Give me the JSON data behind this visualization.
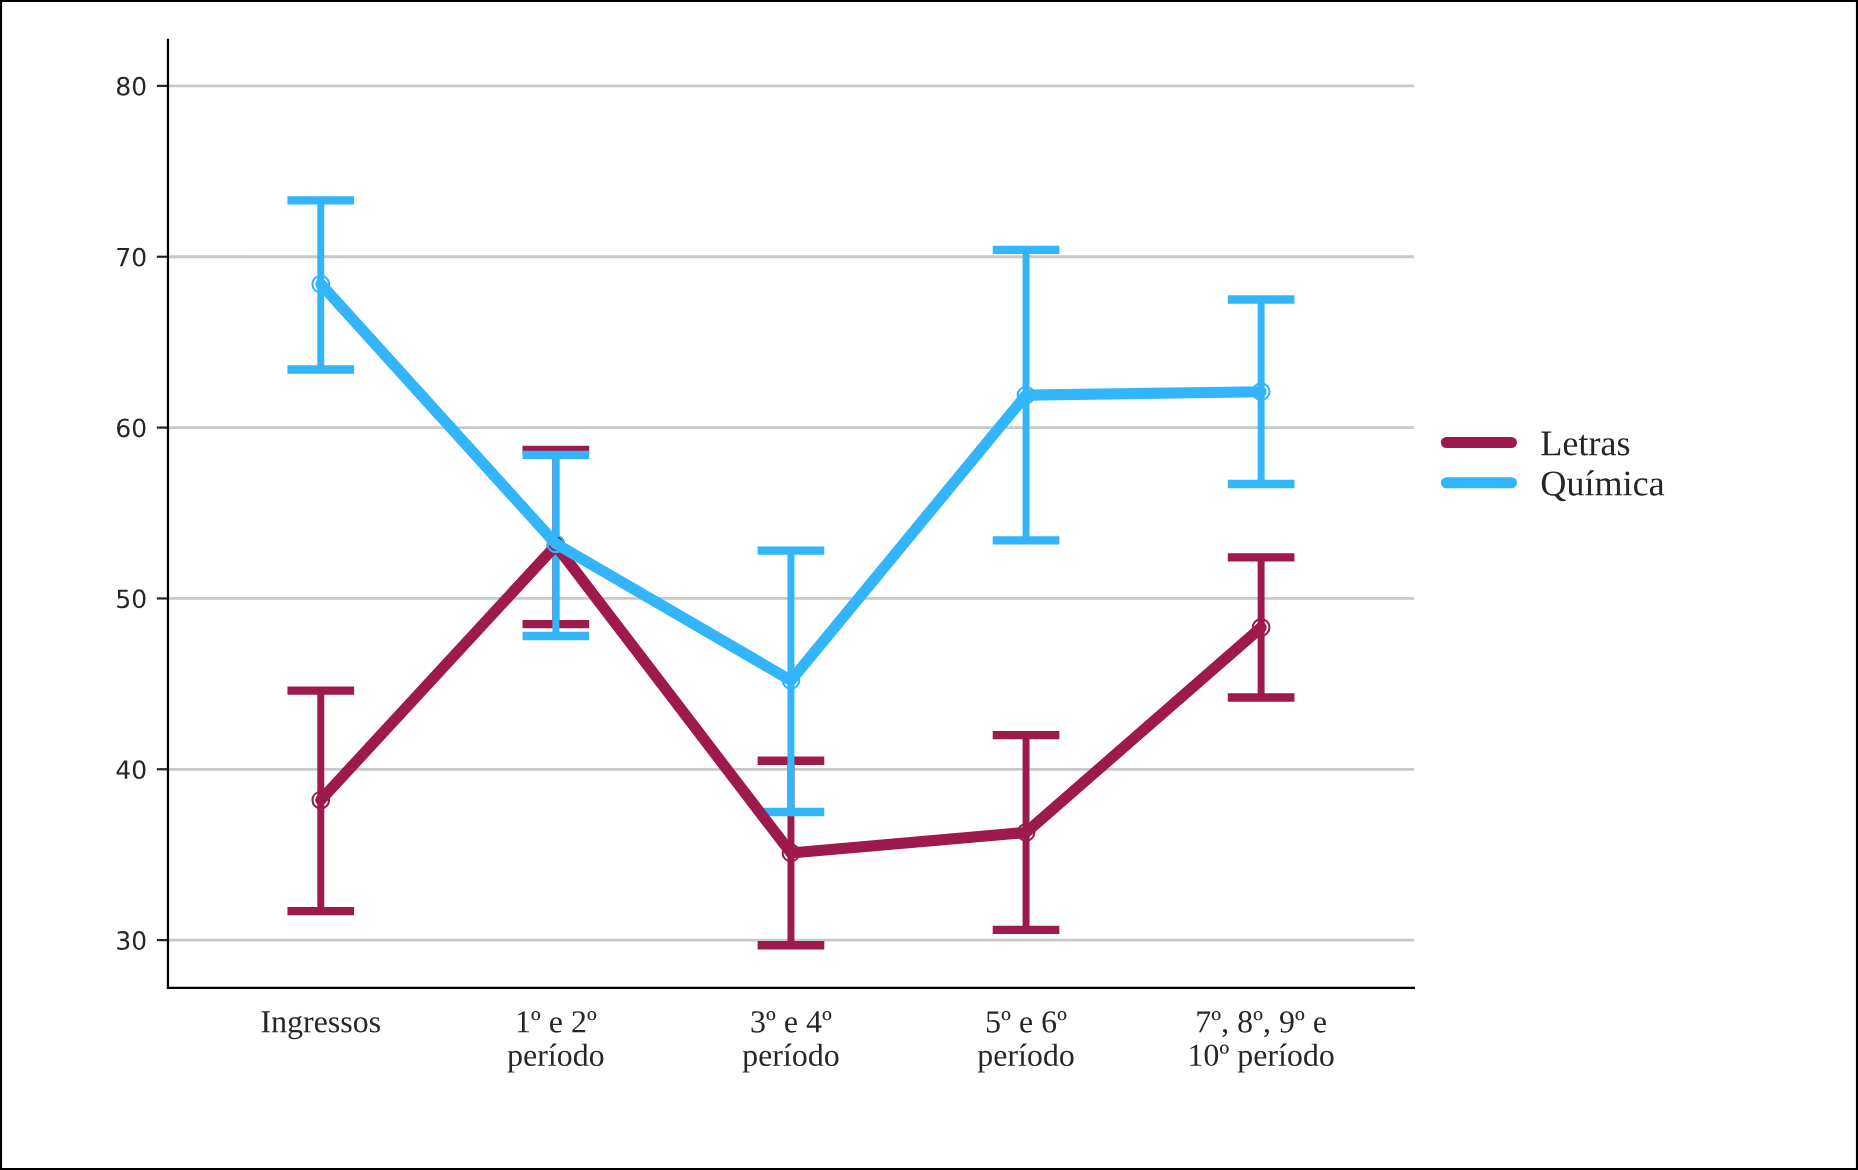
{
  "chart_data": {
    "type": "line",
    "categories": [
      "Ingressos",
      "1º e 2º\nperíodo",
      "3º e 4º\nperíodo",
      "5º e 6º\nperíodo",
      "7º, 8º, 9º e\n10º período"
    ],
    "series": [
      {
        "name": "Letras",
        "color": "#9e1a4c",
        "values": [
          38.2,
          53.1,
          35.1,
          36.3,
          48.3
        ],
        "errors": [
          [
            31.7,
            44.6
          ],
          [
            48.5,
            58.7
          ],
          [
            29.7,
            40.5
          ],
          [
            30.6,
            42.0
          ],
          [
            44.2,
            52.4
          ]
        ]
      },
      {
        "name": "Química",
        "color": "#33b5fb",
        "values": [
          68.4,
          53.2,
          45.2,
          61.9,
          62.1
        ],
        "errors": [
          [
            63.4,
            73.3
          ],
          [
            47.8,
            58.4
          ],
          [
            37.5,
            52.8
          ],
          [
            53.4,
            70.4
          ],
          [
            56.7,
            67.5
          ]
        ]
      }
    ],
    "ylim": [
      27.2,
      82.7
    ],
    "yticks": [
      30,
      40,
      50,
      60,
      70,
      80
    ],
    "grid": "y",
    "legend": "right",
    "marker": "circle",
    "line_style": "solid"
  }
}
